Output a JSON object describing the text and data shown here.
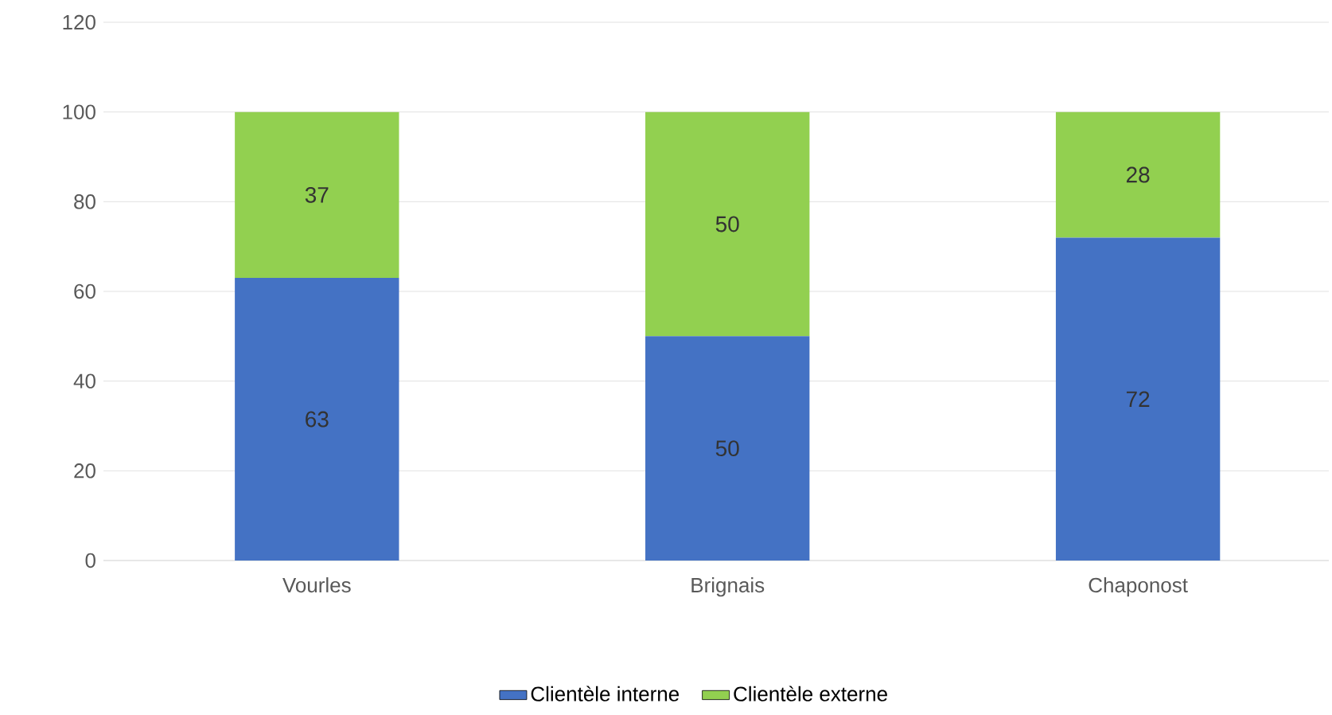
{
  "chart_data": {
    "type": "bar",
    "stacked": true,
    "categories": [
      "Vourles",
      "Brignais",
      "Chaponost"
    ],
    "series": [
      {
        "name": "Clientèle interne",
        "color": "#4472c4",
        "values": [
          63,
          50,
          72
        ]
      },
      {
        "name": "Clientèle externe",
        "color": "#92d050",
        "values": [
          37,
          50,
          28
        ]
      }
    ],
    "ylim": [
      0,
      120
    ],
    "yticks": [
      0,
      20,
      40,
      60,
      80,
      100,
      120
    ],
    "grid": "y",
    "legend": "bottom",
    "data_labels": true
  }
}
